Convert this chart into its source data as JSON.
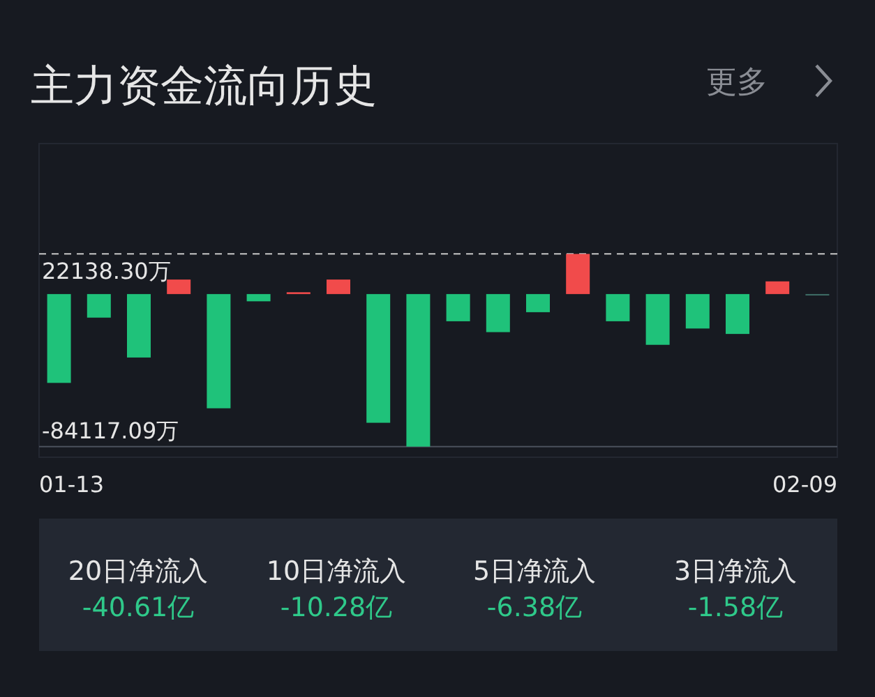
{
  "chart_data": {
    "type": "bar",
    "title": "主力资金流向历史",
    "categories": [
      "01-13",
      null,
      null,
      null,
      null,
      null,
      null,
      null,
      null,
      null,
      null,
      null,
      null,
      null,
      null,
      null,
      null,
      null,
      null,
      "02-09"
    ],
    "values": [
      -49000,
      -13000,
      -35000,
      8000,
      -63000,
      -4000,
      1000,
      8000,
      -71000,
      -84117.09,
      -15000,
      -21000,
      -10000,
      22138.3,
      -15000,
      -28000,
      -19000,
      -22000,
      7000,
      0
    ],
    "colors": [
      "#1fc27a",
      "#1fc27a",
      "#1fc27a",
      "#f14b4b",
      "#1fc27a",
      "#1fc27a",
      "#f14b4b",
      "#f14b4b",
      "#1fc27a",
      "#1fc27a",
      "#1fc27a",
      "#1fc27a",
      "#1fc27a",
      "#f14b4b",
      "#1fc27a",
      "#1fc27a",
      "#1fc27a",
      "#1fc27a",
      "#f14b4b",
      "#3f6f68"
    ],
    "ylim": [
      -90000,
      83000
    ],
    "ref_lines": [
      {
        "axis": "y",
        "value": 22138.3,
        "label": "22138.30万",
        "color": "#c8c8c8",
        "line_style": "dashed"
      },
      {
        "axis": "y",
        "value": -84117.09,
        "label": "-84117.09万",
        "color": "#4a505c",
        "line_style": "solid"
      }
    ],
    "annotations": [
      "更多",
      "20日净流入",
      "-40.61亿",
      "10日净流入",
      "-10.28亿",
      "5日净流入",
      "-6.38亿",
      "3日净流入",
      "-1.58亿"
    ]
  }
}
